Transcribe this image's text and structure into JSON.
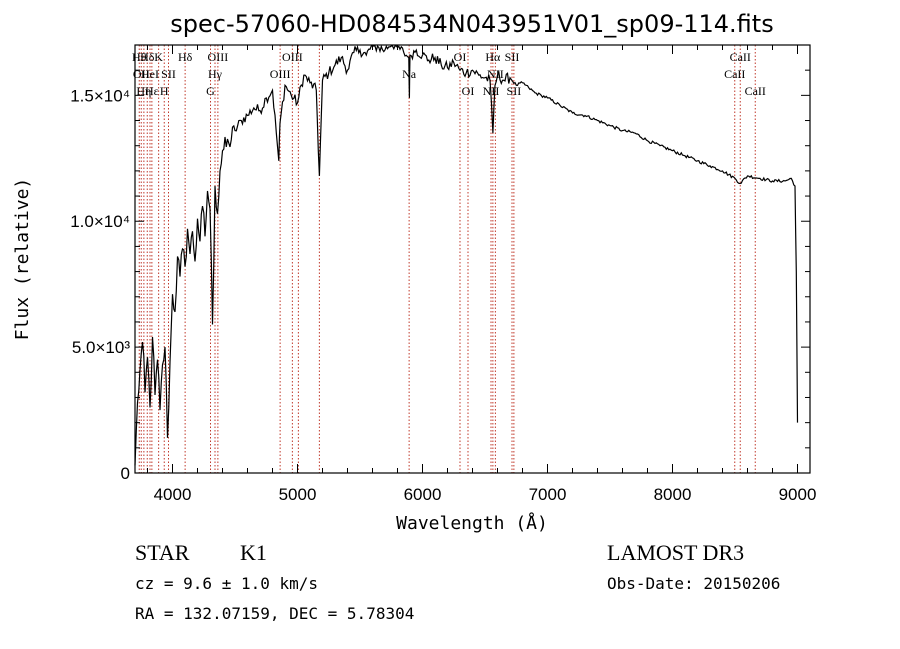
{
  "chart_data": {
    "type": "line",
    "title": "spec-57060-HD084534N043951V01_sp09-114.fits",
    "xlabel": "Wavelength (Å)",
    "ylabel": "Flux (relative)",
    "xlim": [
      3700,
      9100
    ],
    "ylim": [
      0,
      17000
    ],
    "x_ticks": [
      {
        "value": 4000,
        "label": "4000"
      },
      {
        "value": 5000,
        "label": "5000"
      },
      {
        "value": 6000,
        "label": "6000"
      },
      {
        "value": 7000,
        "label": "7000"
      },
      {
        "value": 8000,
        "label": "8000"
      },
      {
        "value": 9000,
        "label": "9000"
      }
    ],
    "y_ticks": [
      {
        "value": 0,
        "label": "0"
      },
      {
        "value": 5000,
        "label": "5.0×10³"
      },
      {
        "value": 10000,
        "label": "1.0×10⁴"
      },
      {
        "value": 15000,
        "label": "1.5×10⁴"
      }
    ],
    "series": [
      {
        "name": "spectrum",
        "color": "#000000",
        "x": [
          3700,
          3720,
          3740,
          3760,
          3780,
          3800,
          3820,
          3840,
          3860,
          3880,
          3900,
          3920,
          3940,
          3960,
          3980,
          4000,
          4020,
          4040,
          4060,
          4080,
          4100,
          4120,
          4140,
          4160,
          4180,
          4200,
          4220,
          4240,
          4260,
          4280,
          4300,
          4320,
          4340,
          4360,
          4380,
          4400,
          4450,
          4500,
          4550,
          4600,
          4650,
          4700,
          4750,
          4800,
          4850,
          4860,
          4900,
          4950,
          5000,
          5050,
          5100,
          5150,
          5175,
          5200,
          5250,
          5300,
          5350,
          5400,
          5450,
          5500,
          5550,
          5600,
          5650,
          5700,
          5750,
          5800,
          5850,
          5890,
          5895,
          5900,
          5950,
          6000,
          6050,
          6100,
          6150,
          6200,
          6250,
          6300,
          6350,
          6400,
          6450,
          6500,
          6540,
          6563,
          6580,
          6600,
          6650,
          6700,
          6750,
          6800,
          6850,
          6900,
          6950,
          7000,
          7100,
          7200,
          7300,
          7400,
          7500,
          7600,
          7700,
          7800,
          7900,
          8000,
          8100,
          8200,
          8300,
          8400,
          8500,
          8540,
          8600,
          8700,
          8800,
          8900,
          8950,
          8980,
          8990,
          9000
        ],
        "y": [
          300,
          2800,
          4100,
          5200,
          3200,
          4600,
          2600,
          5400,
          3100,
          4500,
          2500,
          4300,
          5000,
          1400,
          4400,
          7100,
          6400,
          8600,
          7800,
          8900,
          8200,
          9700,
          8700,
          9600,
          8400,
          10100,
          9200,
          10600,
          9400,
          11200,
          10500,
          5900,
          11400,
          10300,
          12000,
          12800,
          13100,
          13600,
          14000,
          14200,
          14500,
          14400,
          14900,
          15200,
          12400,
          13900,
          15400,
          15000,
          14700,
          15800,
          15500,
          15200,
          11800,
          15600,
          15900,
          16200,
          16500,
          16000,
          16700,
          16800,
          16600,
          17000,
          16900,
          16800,
          17100,
          16900,
          16700,
          16500,
          14900,
          16600,
          16800,
          16600,
          16400,
          16500,
          16200,
          16100,
          16300,
          16000,
          15900,
          16000,
          15800,
          15700,
          15600,
          13500,
          15400,
          15800,
          15600,
          15700,
          15400,
          15500,
          15300,
          15100,
          15000,
          14900,
          14600,
          14300,
          14200,
          14000,
          13800,
          13600,
          13500,
          13200,
          13000,
          12800,
          12600,
          12400,
          12200,
          12000,
          11700,
          11500,
          11800,
          11700,
          11600,
          11600,
          11700,
          11400,
          8000,
          2000
        ]
      }
    ],
    "spectral_lines": [
      {
        "x": 3734,
        "label": "Hθ",
        "row": 0
      },
      {
        "x": 3750,
        "label": "OII",
        "row": 1
      },
      {
        "x": 3771,
        "label": "Hη",
        "row": 2
      },
      {
        "x": 3798,
        "label": "Hδ",
        "row": 0
      },
      {
        "x": 3820,
        "label": "HeI",
        "row": 1
      },
      {
        "x": 3835,
        "label": "Hε",
        "row": 2
      },
      {
        "x": 3889,
        "label": "K",
        "row": 0
      },
      {
        "x": 3934,
        "label": "H",
        "row": 2
      },
      {
        "x": 3968,
        "label": "SII",
        "row": 1
      },
      {
        "x": 4101,
        "label": "Hδ",
        "row": 0
      },
      {
        "x": 4304,
        "label": "G",
        "row": 2
      },
      {
        "x": 4340,
        "label": "Hγ",
        "row": 1
      },
      {
        "x": 4363,
        "label": "OIII",
        "row": 0
      },
      {
        "x": 4861,
        "label": "OIII",
        "row": 1
      },
      {
        "x": 4959,
        "label": "OIII",
        "row": 0
      },
      {
        "x": 5007,
        "label": "",
        "row": 0
      },
      {
        "x": 5175,
        "label": "",
        "row": 0
      },
      {
        "x": 5893,
        "label": "Na",
        "row": 1
      },
      {
        "x": 6300,
        "label": "OI",
        "row": 0
      },
      {
        "x": 6364,
        "label": "OI",
        "row": 2
      },
      {
        "x": 6548,
        "label": "NII",
        "row": 2
      },
      {
        "x": 6563,
        "label": "Hα",
        "row": 0
      },
      {
        "x": 6583,
        "label": "NII",
        "row": 1
      },
      {
        "x": 6716,
        "label": "SII",
        "row": 0
      },
      {
        "x": 6731,
        "label": "SII",
        "row": 2
      },
      {
        "x": 8498,
        "label": "CaII",
        "row": 1
      },
      {
        "x": 8542,
        "label": "CaII",
        "row": 0
      },
      {
        "x": 8662,
        "label": "CaII",
        "row": 2
      }
    ],
    "line_color": "#c0392b"
  },
  "info": {
    "class_label": "STAR",
    "subclass": "K1",
    "redshift": "cz = 9.6 ± 1.0 km/s",
    "coords": "RA = 132.07159, DEC =   5.78304",
    "survey": "LAMOST DR3",
    "obs_date": "Obs-Date: 20150206"
  }
}
